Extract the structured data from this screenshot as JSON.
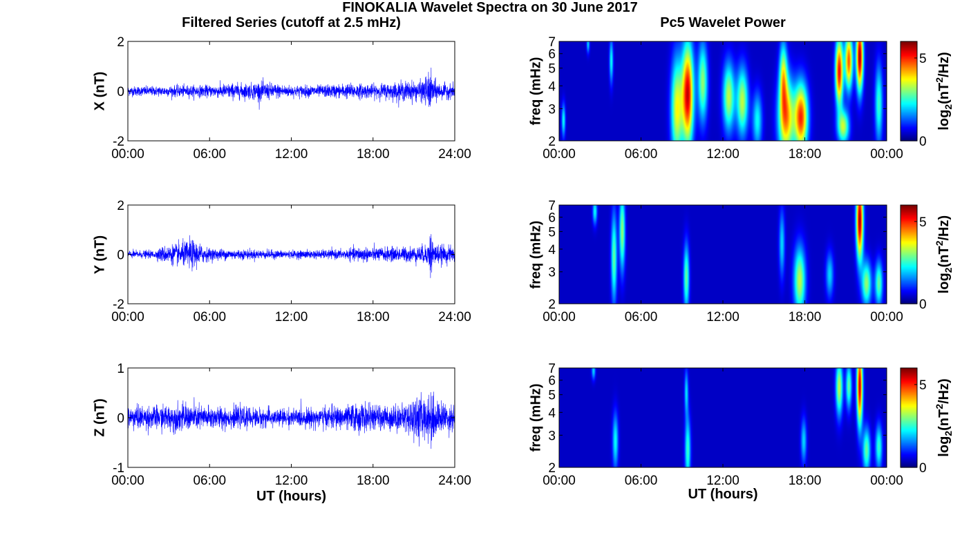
{
  "figure_title": "FINOKALIA Wavelet Spectra on 30 June 2017",
  "left_column_title": "Filtered Series (cutoff at 2.5 mHz)",
  "right_column_title": "Pc5 Wavelet Power",
  "colors": {
    "series_line": "#0000ff",
    "axes": "#000000",
    "background_spec": "#00008f"
  },
  "chart_data": [
    {
      "type": "line",
      "panel": "X",
      "ylabel": "X (nT)",
      "xlabel": "",
      "x_ticks": [
        "00:00",
        "06:00",
        "12:00",
        "18:00",
        "24:00"
      ],
      "xlim": [
        0,
        24
      ],
      "ylim": [
        -2,
        2
      ],
      "y_ticks": [
        "2",
        "0",
        "-2"
      ],
      "noise_envelope": {
        "x": [
          0,
          2,
          4,
          6,
          7.5,
          9,
          9.5,
          12,
          14,
          16.5,
          18,
          20.5,
          21.5,
          22.2,
          22.5,
          23,
          24
        ],
        "amplitude": [
          0.25,
          0.25,
          0.3,
          0.3,
          0.4,
          0.4,
          0.5,
          0.3,
          0.3,
          0.4,
          0.35,
          0.5,
          0.5,
          1.0,
          0.6,
          0.4,
          0.35
        ]
      },
      "series": [
        {
          "name": "",
          "color": "#0000ff"
        }
      ]
    },
    {
      "type": "line",
      "panel": "Y",
      "ylabel": "Y (nT)",
      "xlabel": "",
      "x_ticks": [
        "00:00",
        "06:00",
        "12:00",
        "18:00",
        "24:00"
      ],
      "xlim": [
        0,
        24
      ],
      "ylim": [
        -2,
        2
      ],
      "y_ticks": [
        "2",
        "0",
        "-2"
      ],
      "noise_envelope": {
        "x": [
          0,
          2,
          2.5,
          4,
          4.6,
          6,
          9,
          12,
          16,
          17,
          18,
          21,
          22,
          22.2,
          22.6,
          24
        ],
        "amplitude": [
          0.2,
          0.2,
          0.4,
          0.6,
          0.8,
          0.3,
          0.25,
          0.2,
          0.25,
          0.4,
          0.35,
          0.4,
          0.5,
          1.3,
          0.5,
          0.4
        ]
      },
      "series": [
        {
          "name": "",
          "color": "#0000ff"
        }
      ]
    },
    {
      "type": "line",
      "panel": "Z",
      "ylabel": "Z (nT)",
      "xlabel": "UT (hours)",
      "x_ticks": [
        "00:00",
        "06:00",
        "12:00",
        "18:00",
        "24:00"
      ],
      "xlim": [
        0,
        24
      ],
      "ylim": [
        -1,
        1
      ],
      "y_ticks": [
        "1",
        "0",
        "-1"
      ],
      "noise_envelope": {
        "x": [
          0,
          2,
          4,
          6,
          9,
          12,
          16,
          17,
          18,
          20.5,
          21,
          22,
          22.3,
          22.7,
          24
        ],
        "amplitude": [
          0.3,
          0.3,
          0.35,
          0.3,
          0.25,
          0.22,
          0.3,
          0.4,
          0.3,
          0.35,
          0.6,
          0.5,
          0.8,
          0.4,
          0.35
        ]
      },
      "series": [
        {
          "name": "",
          "color": "#0000ff"
        }
      ]
    },
    {
      "type": "heatmap",
      "panel": "X",
      "ylabel": "freq (mHz)",
      "xlabel": "",
      "x_ticks": [
        "00:00",
        "06:00",
        "12:00",
        "18:00",
        "00:00"
      ],
      "xlim": [
        0,
        24
      ],
      "y_scale": "log",
      "ylim": [
        2,
        7
      ],
      "y_ticks": [
        "2",
        "3",
        "4",
        "5",
        "6",
        "7"
      ],
      "colorbar": {
        "label": "log2(nT2/Hz)",
        "range": [
          0,
          6
        ],
        "ticks": [
          "0",
          "5"
        ],
        "colormap": "jet"
      },
      "blobs": [
        {
          "t": 0.3,
          "f": 2.6,
          "sf": 0.15,
          "st": 0.1,
          "p": 0.35
        },
        {
          "t": 2.1,
          "f": 6.8,
          "sf": 0.08,
          "st": 0.08,
          "p": 0.3
        },
        {
          "t": 3.8,
          "f": 5.5,
          "sf": 0.2,
          "st": 0.1,
          "p": 0.35
        },
        {
          "t": 8.6,
          "f": 3.0,
          "sf": 0.45,
          "st": 0.3,
          "p": 0.6
        },
        {
          "t": 9.4,
          "f": 3.6,
          "sf": 0.45,
          "st": 0.3,
          "p": 0.95
        },
        {
          "t": 10.5,
          "f": 4.2,
          "sf": 0.35,
          "st": 0.25,
          "p": 0.5
        },
        {
          "t": 12.4,
          "f": 3.5,
          "sf": 0.3,
          "st": 0.3,
          "p": 0.55
        },
        {
          "t": 13.4,
          "f": 3.3,
          "sf": 0.3,
          "st": 0.3,
          "p": 0.55
        },
        {
          "t": 14.5,
          "f": 2.6,
          "sf": 0.25,
          "st": 0.25,
          "p": 0.35
        },
        {
          "t": 16.6,
          "f": 2.7,
          "sf": 0.35,
          "st": 0.4,
          "p": 0.75
        },
        {
          "t": 17.7,
          "f": 2.7,
          "sf": 0.3,
          "st": 0.35,
          "p": 0.85
        },
        {
          "t": 16.4,
          "f": 4.6,
          "sf": 0.3,
          "st": 0.2,
          "p": 0.5
        },
        {
          "t": 20.5,
          "f": 4.8,
          "sf": 0.3,
          "st": 0.2,
          "p": 0.9
        },
        {
          "t": 21.2,
          "f": 5.5,
          "sf": 0.25,
          "st": 0.2,
          "p": 0.8
        },
        {
          "t": 22.0,
          "f": 5.8,
          "sf": 0.3,
          "st": 0.18,
          "p": 1.0
        },
        {
          "t": 20.8,
          "f": 2.4,
          "sf": 0.15,
          "st": 0.3,
          "p": 0.55
        },
        {
          "t": 23.4,
          "f": 3.2,
          "sf": 0.35,
          "st": 0.2,
          "p": 0.4
        }
      ]
    },
    {
      "type": "heatmap",
      "panel": "Y",
      "ylabel": "freq (mHz)",
      "xlabel": "",
      "x_ticks": [
        "00:00",
        "06:00",
        "12:00",
        "18:00",
        "00:00"
      ],
      "xlim": [
        0,
        24
      ],
      "y_scale": "log",
      "ylim": [
        2,
        7
      ],
      "y_ticks": [
        "2",
        "3",
        "4",
        "5",
        "6",
        "7"
      ],
      "colorbar": {
        "label": "log2(nT2/Hz)",
        "range": [
          0,
          6
        ],
        "ticks": [
          "0",
          "5"
        ],
        "colormap": "jet"
      },
      "blobs": [
        {
          "t": 2.6,
          "f": 6.5,
          "sf": 0.12,
          "st": 0.12,
          "p": 0.35
        },
        {
          "t": 4.0,
          "f": 3.6,
          "sf": 0.4,
          "st": 0.15,
          "p": 0.45
        },
        {
          "t": 4.6,
          "f": 5.0,
          "sf": 0.35,
          "st": 0.15,
          "p": 0.5
        },
        {
          "t": 9.3,
          "f": 2.8,
          "sf": 0.3,
          "st": 0.15,
          "p": 0.45
        },
        {
          "t": 16.3,
          "f": 4.3,
          "sf": 0.3,
          "st": 0.15,
          "p": 0.3
        },
        {
          "t": 17.6,
          "f": 2.7,
          "sf": 0.3,
          "st": 0.3,
          "p": 0.55
        },
        {
          "t": 19.8,
          "f": 2.9,
          "sf": 0.2,
          "st": 0.2,
          "p": 0.3
        },
        {
          "t": 22.0,
          "f": 5.8,
          "sf": 0.35,
          "st": 0.18,
          "p": 1.0
        },
        {
          "t": 22.5,
          "f": 2.6,
          "sf": 0.2,
          "st": 0.25,
          "p": 0.5
        },
        {
          "t": 23.4,
          "f": 2.6,
          "sf": 0.2,
          "st": 0.2,
          "p": 0.45
        }
      ]
    },
    {
      "type": "heatmap",
      "panel": "Z",
      "ylabel": "freq (mHz)",
      "xlabel": "UT (hours)",
      "x_ticks": [
        "00:00",
        "06:00",
        "12:00",
        "18:00",
        "00:00"
      ],
      "xlim": [
        0,
        24
      ],
      "y_scale": "log",
      "ylim": [
        2,
        7
      ],
      "y_ticks": [
        "2",
        "3",
        "4",
        "5",
        "6",
        "7"
      ],
      "colorbar": {
        "label": "log2(nT2/Hz)",
        "range": [
          0,
          6
        ],
        "ticks": [
          "0",
          "5"
        ],
        "colormap": "jet"
      },
      "blobs": [
        {
          "t": 2.5,
          "f": 6.8,
          "sf": 0.08,
          "st": 0.1,
          "p": 0.3
        },
        {
          "t": 4.1,
          "f": 2.8,
          "sf": 0.25,
          "st": 0.15,
          "p": 0.35
        },
        {
          "t": 9.4,
          "f": 2.5,
          "sf": 0.3,
          "st": 0.15,
          "p": 0.4
        },
        {
          "t": 9.3,
          "f": 5.2,
          "sf": 0.2,
          "st": 0.1,
          "p": 0.3
        },
        {
          "t": 17.9,
          "f": 2.8,
          "sf": 0.2,
          "st": 0.15,
          "p": 0.3
        },
        {
          "t": 20.5,
          "f": 5.5,
          "sf": 0.25,
          "st": 0.18,
          "p": 0.55
        },
        {
          "t": 21.2,
          "f": 5.6,
          "sf": 0.2,
          "st": 0.15,
          "p": 0.45
        },
        {
          "t": 22.0,
          "f": 5.6,
          "sf": 0.35,
          "st": 0.15,
          "p": 0.95
        },
        {
          "t": 22.5,
          "f": 2.5,
          "sf": 0.2,
          "st": 0.2,
          "p": 0.45
        },
        {
          "t": 23.4,
          "f": 2.6,
          "sf": 0.2,
          "st": 0.18,
          "p": 0.4
        }
      ]
    }
  ]
}
